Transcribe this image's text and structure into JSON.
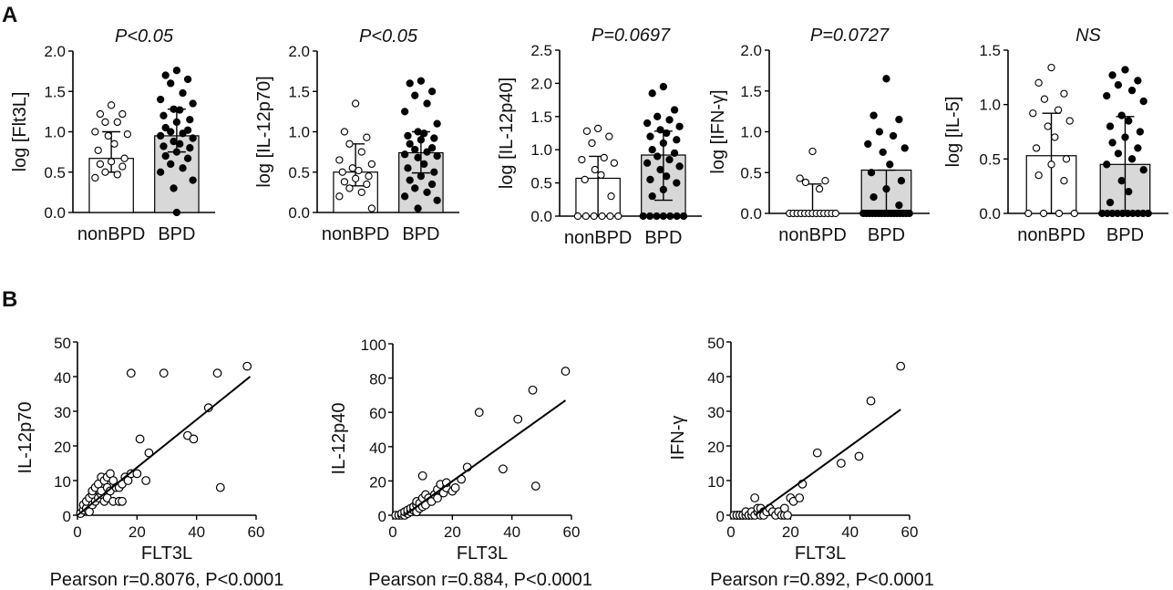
{
  "panel_a_label": "A",
  "panel_b_label": "B",
  "chart_data": [
    {
      "type": "bar",
      "id": "flt3l",
      "ylabel": "log [Flt3L]",
      "stat": "P<0.05",
      "categories": [
        "nonBPD",
        "BPD"
      ],
      "values": [
        0.67,
        0.95
      ],
      "err_low": [
        0.5,
        0.75
      ],
      "err_high": [
        1.0,
        1.28
      ],
      "ylim": [
        0,
        2.0
      ],
      "yticks": [
        "0.0",
        "0.5",
        "1.0",
        "1.5",
        "2.0"
      ],
      "fills": [
        "#ffffff",
        "#d8d8d8"
      ],
      "points": [
        [
          1.33,
          1.22,
          1.22,
          1.12,
          1.12,
          1.0,
          0.97,
          0.95,
          0.85,
          0.77,
          0.67,
          0.63,
          0.6,
          0.57,
          0.5,
          0.47,
          0.43
        ],
        [
          1.76,
          1.7,
          1.65,
          1.6,
          1.48,
          1.4,
          1.35,
          1.28,
          1.27,
          1.2,
          1.15,
          1.12,
          1.05,
          1.02,
          1.0,
          0.98,
          0.95,
          0.92,
          0.88,
          0.85,
          0.82,
          0.8,
          0.75,
          0.7,
          0.67,
          0.6,
          0.55,
          0.5,
          0.4,
          0.3,
          0.0
        ]
      ]
    },
    {
      "type": "bar",
      "id": "il12p70",
      "ylabel": "log [IL-12p70]",
      "stat": "P<0.05",
      "categories": [
        "nonBPD",
        "BPD"
      ],
      "values": [
        0.5,
        0.74
      ],
      "err_low": [
        0.33,
        0.49
      ],
      "err_high": [
        0.85,
        1.0
      ],
      "ylim": [
        0,
        2.0
      ],
      "yticks": [
        "0.0",
        "0.5",
        "1.0",
        "1.5",
        "2.0"
      ],
      "fills": [
        "#ffffff",
        "#d8d8d8"
      ],
      "points": [
        [
          1.35,
          1.0,
          0.93,
          0.85,
          0.75,
          0.65,
          0.6,
          0.55,
          0.52,
          0.5,
          0.45,
          0.42,
          0.38,
          0.35,
          0.3,
          0.25,
          0.2,
          0.05
        ],
        [
          1.63,
          1.6,
          1.5,
          1.45,
          1.35,
          1.25,
          1.1,
          1.0,
          0.98,
          0.95,
          0.92,
          0.9,
          0.85,
          0.8,
          0.78,
          0.75,
          0.72,
          0.7,
          0.68,
          0.6,
          0.55,
          0.5,
          0.45,
          0.4,
          0.35,
          0.3,
          0.25,
          0.2,
          0.15,
          0.05
        ]
      ]
    },
    {
      "type": "bar",
      "id": "il12p40",
      "ylabel": "log [IL-12p40]",
      "stat": "P=0.0697",
      "categories": [
        "nonBPD",
        "BPD"
      ],
      "values": [
        0.57,
        0.92
      ],
      "err_low": [
        0.0,
        0.24
      ],
      "err_high": [
        0.9,
        1.28
      ],
      "ylim": [
        0,
        2.5
      ],
      "yticks": [
        "0.0",
        "0.5",
        "1.0",
        "1.5",
        "2.0",
        "2.5"
      ],
      "fills": [
        "#ffffff",
        "#d8d8d8"
      ],
      "points": [
        [
          1.32,
          1.28,
          1.2,
          1.1,
          0.88,
          0.85,
          0.8,
          0.7,
          0.62,
          0.55,
          0.3,
          0.0,
          0.0,
          0.0,
          0.0,
          0.0,
          0.0
        ],
        [
          1.95,
          1.85,
          1.6,
          1.5,
          1.45,
          1.4,
          1.35,
          1.3,
          1.25,
          1.2,
          1.15,
          1.1,
          1.0,
          0.95,
          0.9,
          0.85,
          0.8,
          0.75,
          0.7,
          0.6,
          0.55,
          0.5,
          0.4,
          0.3,
          0.0,
          0.0,
          0.0,
          0.0,
          0.0,
          0.0,
          0.0
        ]
      ]
    },
    {
      "type": "bar",
      "id": "ifng",
      "ylabel": "log [IFN-γ]",
      "stat": "P=0.0727",
      "categories": [
        "nonBPD",
        "BPD"
      ],
      "values": [
        0.0,
        0.53
      ],
      "err_low": [
        0.0,
        0.0
      ],
      "err_high": [
        0.36,
        0.53
      ],
      "ylim": [
        0,
        2.0
      ],
      "yticks": [
        "0.0",
        "0.5",
        "1.0",
        "1.5",
        "2.0"
      ],
      "fills": [
        "#ffffff",
        "#d8d8d8"
      ],
      "points": [
        [
          0.76,
          0.43,
          0.4,
          0.38,
          0.3,
          0.0,
          0.0,
          0.0,
          0.0,
          0.0,
          0.0,
          0.0,
          0.0,
          0.0,
          0.0,
          0.0,
          0.0,
          0.0
        ],
        [
          1.65,
          1.2,
          1.15,
          1.0,
          0.95,
          0.85,
          0.8,
          0.75,
          0.6,
          0.5,
          0.4,
          0.3,
          0.2,
          0.1,
          0.0,
          0.0,
          0.0,
          0.0,
          0.0,
          0.0,
          0.0,
          0.0,
          0.0,
          0.0,
          0.0,
          0.0,
          0.0,
          0.0,
          0.0,
          0.0
        ]
      ]
    },
    {
      "type": "bar",
      "id": "il5",
      "ylabel": "log [IL-5]",
      "stat": "NS",
      "categories": [
        "nonBPD",
        "BPD"
      ],
      "values": [
        0.53,
        0.45
      ],
      "err_low": [
        0.0,
        0.0
      ],
      "err_high": [
        0.92,
        0.89
      ],
      "ylim": [
        0,
        1.5
      ],
      "yticks": [
        "0.0",
        "0.5",
        "1.0",
        "1.5"
      ],
      "fills": [
        "#ffffff",
        "#d8d8d8"
      ],
      "points": [
        [
          1.34,
          1.2,
          1.1,
          1.05,
          0.95,
          0.92,
          0.85,
          0.8,
          0.7,
          0.6,
          0.5,
          0.45,
          0.35,
          0.3,
          0.0,
          0.0,
          0.0,
          0.0
        ],
        [
          1.32,
          1.27,
          1.22,
          1.18,
          1.13,
          1.08,
          1.03,
          0.9,
          0.85,
          0.8,
          0.75,
          0.7,
          0.65,
          0.6,
          0.55,
          0.5,
          0.45,
          0.4,
          0.3,
          0.2,
          0.1,
          0.0,
          0.0,
          0.0,
          0.0,
          0.0,
          0.0,
          0.0,
          0.0,
          0.0,
          0.0
        ]
      ]
    },
    {
      "type": "scatter",
      "id": "scatter_il12p70",
      "xlabel": "FLT3L",
      "ylabel": "IL-12p70",
      "caption": "Pearson r=0.8076, P<0.0001",
      "xlim": [
        0,
        60
      ],
      "ylim": [
        0,
        50
      ],
      "xticks": [
        "0",
        "20",
        "40",
        "60"
      ],
      "yticks": [
        "0",
        "10",
        "20",
        "30",
        "40",
        "50"
      ],
      "fit": [
        [
          0,
          0
        ],
        [
          58,
          40
        ]
      ],
      "x": [
        1,
        2,
        2,
        3,
        3,
        4,
        4,
        5,
        5,
        5,
        6,
        6,
        7,
        7,
        8,
        8,
        8,
        9,
        9,
        10,
        10,
        10,
        11,
        11,
        12,
        12,
        13,
        14,
        14,
        15,
        15,
        16,
        17,
        18,
        18,
        20,
        21,
        23,
        24,
        29,
        37,
        39,
        44,
        47,
        48,
        57
      ],
      "y": [
        0.5,
        1.5,
        3,
        2,
        4,
        1,
        5,
        3,
        6,
        7,
        4,
        8,
        5,
        9,
        6,
        7,
        11,
        4,
        10,
        8,
        5,
        11,
        7,
        12,
        4,
        10,
        8,
        4,
        8,
        9,
        4,
        11,
        10,
        12,
        41,
        12,
        22,
        10,
        18,
        41,
        23,
        22,
        31,
        41,
        8,
        43
      ]
    },
    {
      "type": "scatter",
      "id": "scatter_il12p40",
      "xlabel": "FLT3L",
      "ylabel": "IL-12p40",
      "caption": "Pearson r=0.884, P<0.0001",
      "xlim": [
        0,
        60
      ],
      "ylim": [
        0,
        100
      ],
      "xticks": [
        "0",
        "20",
        "40",
        "60"
      ],
      "yticks": [
        "0",
        "20",
        "40",
        "60",
        "80",
        "100"
      ],
      "fit": [
        [
          4,
          0
        ],
        [
          58,
          67
        ]
      ],
      "x": [
        1,
        2,
        3,
        3,
        4,
        4,
        5,
        5,
        6,
        6,
        7,
        7,
        8,
        8,
        8,
        9,
        9,
        10,
        10,
        10,
        11,
        11,
        12,
        13,
        14,
        15,
        15,
        16,
        17,
        18,
        18,
        20,
        21,
        23,
        25,
        29,
        37,
        42,
        47,
        48,
        58
      ],
      "y": [
        0,
        0,
        0,
        1,
        0,
        2,
        1,
        3,
        2,
        4,
        3,
        5,
        2,
        6,
        8,
        4,
        7,
        5,
        10,
        23,
        6,
        12,
        10,
        8,
        12,
        15,
        10,
        18,
        13,
        16,
        19,
        14,
        16,
        21,
        28,
        60,
        27,
        56,
        73,
        17,
        84
      ]
    },
    {
      "type": "scatter",
      "id": "scatter_ifng",
      "xlabel": "FLT3L",
      "ylabel": "IFN-γ",
      "caption": "Pearson r=0.892, P<0.0001",
      "xlim": [
        0,
        60
      ],
      "ylim": [
        0,
        50
      ],
      "xticks": [
        "0",
        "20",
        "40",
        "60"
      ],
      "yticks": [
        "0",
        "10",
        "20",
        "30",
        "40",
        "50"
      ],
      "fit": [
        [
          8,
          0
        ],
        [
          57,
          30.5
        ]
      ],
      "x": [
        1,
        2,
        2,
        3,
        3,
        4,
        4,
        5,
        5,
        6,
        6,
        7,
        7,
        8,
        8,
        9,
        9,
        10,
        10,
        11,
        11,
        12,
        13,
        14,
        15,
        16,
        17,
        18,
        18,
        19,
        20,
        21,
        23,
        24,
        29,
        37,
        43,
        47,
        57
      ],
      "y": [
        0,
        0,
        0,
        0,
        0,
        0,
        0,
        0,
        1,
        0,
        0,
        0,
        1,
        0,
        5,
        1,
        2,
        0,
        2,
        1,
        0,
        1,
        2,
        1,
        0,
        1,
        0,
        0,
        2,
        0,
        5,
        4,
        5,
        9,
        18,
        15,
        17,
        33,
        43
      ]
    }
  ]
}
